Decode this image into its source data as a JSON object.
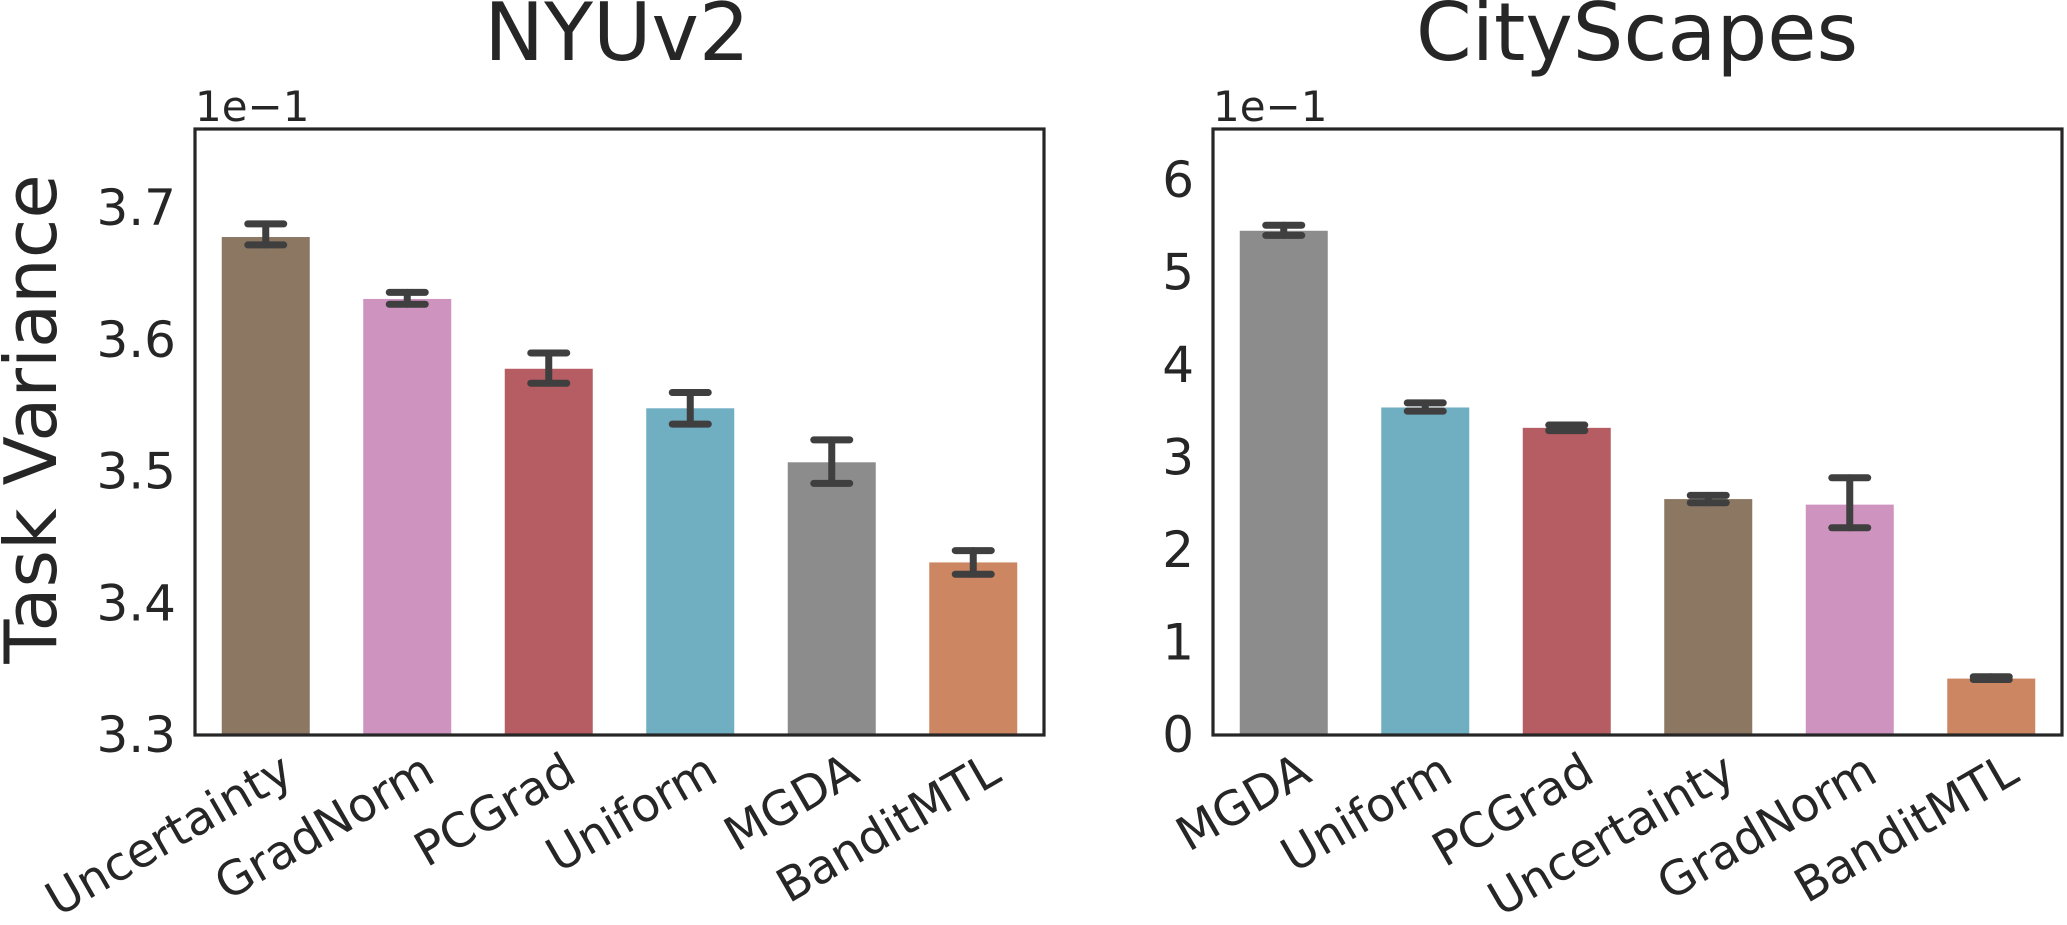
{
  "chart_data": [
    {
      "type": "bar",
      "title": "NYUv2",
      "ylabel": "Task Variance",
      "ylim": [
        3.3,
        3.76
      ],
      "yticks": [
        "3.3",
        "3.4",
        "3.5",
        "3.6",
        "3.7"
      ],
      "ytick_values": [
        3.3,
        3.4,
        3.5,
        3.6,
        3.7
      ],
      "offset_label": "1e−1",
      "categories": [
        "Uncertainty",
        "GradNorm",
        "PCGrad",
        "Uniform",
        "MGDA",
        "BanditMTL"
      ],
      "values": [
        3.678,
        3.631,
        3.578,
        3.548,
        3.507,
        3.431
      ],
      "error_low": [
        3.672,
        3.627,
        3.567,
        3.536,
        3.491,
        3.422
      ],
      "error_high": [
        3.688,
        3.636,
        3.59,
        3.56,
        3.524,
        3.44
      ],
      "colors": [
        "#8c7763",
        "#cf93bf",
        "#b65c63",
        "#70aec2",
        "#8c8c8c",
        "#cc8762"
      ],
      "grid": false
    },
    {
      "type": "bar",
      "title": "CityScapes",
      "ylabel": "",
      "ylim": [
        0,
        6.55
      ],
      "yticks": [
        "0",
        "1",
        "2",
        "3",
        "4",
        "5",
        "6"
      ],
      "ytick_values": [
        0,
        1,
        2,
        3,
        4,
        5,
        6
      ],
      "offset_label": "1e−1",
      "categories": [
        "MGDA",
        "Uniform",
        "PCGrad",
        "Uncertainty",
        "GradNorm",
        "BanditMTL"
      ],
      "values": [
        5.45,
        3.54,
        3.32,
        2.55,
        2.49,
        0.61
      ],
      "error_low": [
        5.4,
        3.5,
        3.29,
        2.51,
        2.24,
        0.6
      ],
      "error_high": [
        5.51,
        3.59,
        3.35,
        2.59,
        2.78,
        0.63
      ],
      "colors": [
        "#8c8c8c",
        "#70aec2",
        "#b65c63",
        "#8c7763",
        "#cf93bf",
        "#cc8762"
      ],
      "grid": false
    }
  ]
}
